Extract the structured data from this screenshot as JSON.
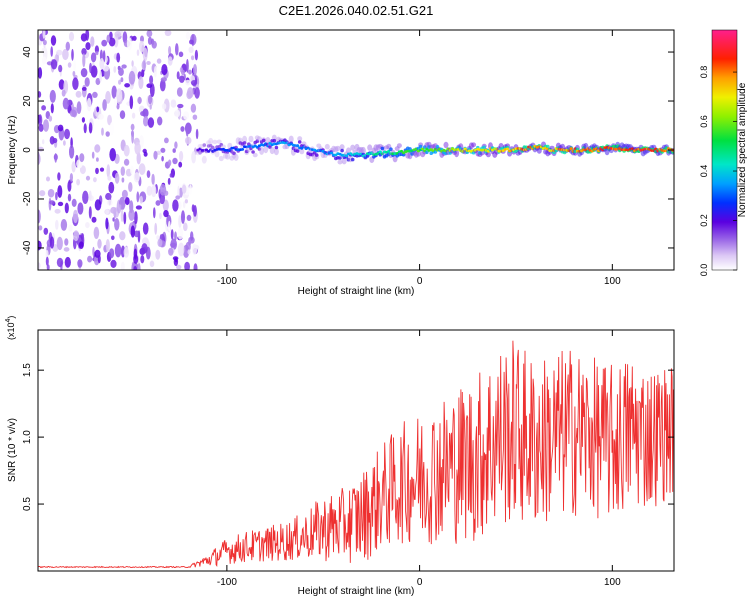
{
  "chart_data": [
    {
      "type": "heatmap",
      "title": "C2E1.2026.040.02.51.G21",
      "xlabel": "Height of straight line (km)",
      "ylabel": "Frequency (Hz)",
      "xlim": [
        -198,
        132
      ],
      "ylim": [
        -49,
        49
      ],
      "x_ticks": [
        -100,
        0,
        100
      ],
      "y_ticks": [
        -40,
        -20,
        0,
        20,
        40
      ],
      "colorbar": {
        "label": "Normalized spectral amplitude",
        "range": [
          0,
          0.97
        ],
        "ticks": [
          0.0,
          0.2,
          0.4,
          0.6,
          0.8
        ]
      },
      "signal_trace": {
        "x": [
          -115,
          -100,
          -90,
          -80,
          -70,
          -60,
          -50,
          -40,
          -30,
          -20,
          -10,
          0,
          10,
          20,
          30,
          40,
          50,
          60,
          70,
          80,
          90,
          100,
          110,
          120,
          130
        ],
        "frequency": [
          0,
          0,
          1,
          2,
          3,
          1,
          -1,
          -2,
          -2,
          -1,
          -1,
          0,
          0,
          0,
          0,
          0,
          0,
          1,
          0,
          0,
          0,
          1,
          0,
          0,
          0
        ],
        "amplitude": [
          0.2,
          0.3,
          0.32,
          0.35,
          0.38,
          0.35,
          0.35,
          0.4,
          0.45,
          0.5,
          0.55,
          0.6,
          0.65,
          0.7,
          0.72,
          0.78,
          0.82,
          0.85,
          0.8,
          0.85,
          0.88,
          0.9,
          0.9,
          0.9,
          0.88
        ]
      },
      "noise_region": {
        "x_range": [
          -198,
          -115
        ],
        "amplitude_max": 0.2
      }
    },
    {
      "type": "line",
      "xlabel": "Height of straight line (km)",
      "ylabel": "SNR (10 * v/v)",
      "y_scale": "(x10",
      "y_scale_exp": "4",
      "y_scale_close": ")",
      "xlim": [
        -198,
        132
      ],
      "ylim": [
        0,
        18000
      ],
      "x_ticks": [
        -100,
        0,
        100
      ],
      "y_ticks": [
        0.5,
        1.0,
        1.5
      ],
      "series": [
        {
          "name": "SNR",
          "color": "#ee3030",
          "x": [
            -198,
            -180,
            -160,
            -140,
            -120,
            -110,
            -100,
            -90,
            -80,
            -70,
            -60,
            -50,
            -40,
            -30,
            -20,
            -10,
            0,
            10,
            20,
            30,
            40,
            50,
            60,
            70,
            80,
            90,
            100,
            110,
            120,
            130
          ],
          "y": [
            300,
            300,
            300,
            300,
            300,
            800,
            1500,
            1800,
            2000,
            2200,
            2600,
            3200,
            3400,
            4000,
            5500,
            6500,
            7000,
            7500,
            8000,
            8500,
            10000,
            10500,
            9500,
            10000,
            10500,
            10000,
            9500,
            10500,
            10000,
            10500
          ],
          "amplitude": [
            40,
            40,
            40,
            40,
            40,
            500,
            1000,
            1200,
            1300,
            1500,
            1800,
            2500,
            2800,
            3500,
            4000,
            4500,
            5000,
            5500,
            6000,
            6500,
            7000,
            7000,
            6500,
            6500,
            6500,
            6000,
            6000,
            6000,
            5500,
            5000
          ]
        }
      ]
    }
  ]
}
